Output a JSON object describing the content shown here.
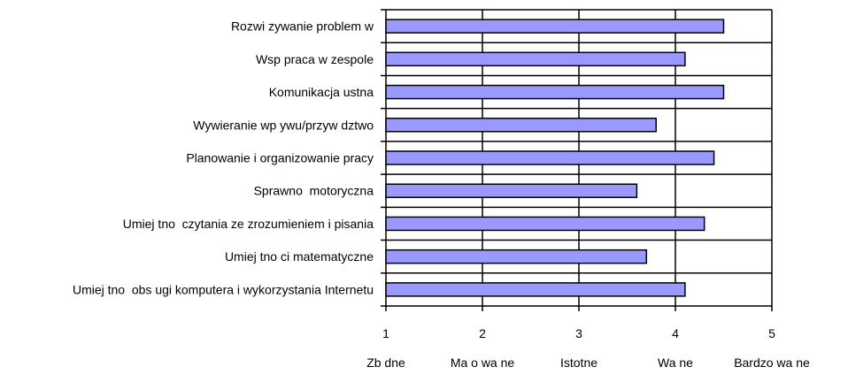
{
  "chart_data": {
    "type": "bar",
    "orientation": "horizontal",
    "categories": [
      "Rozwi zywanie problem w",
      "Wsp praca w zespole",
      "Komunikacja ustna",
      "Wywieranie wp ywu/przyw dztwo",
      "Planowanie i organizowanie pracy",
      "Sprawno  motoryczna",
      "Umiej tno  czytania ze zrozumieniem i pisania",
      "Umiej tno ci matematyczne",
      "Umiej tno  obs ugi komputera i wykorzystania Internetu"
    ],
    "values": [
      4.5,
      4.1,
      4.5,
      3.8,
      4.4,
      3.6,
      4.3,
      3.7,
      4.1
    ],
    "xlim": [
      1,
      5
    ],
    "xticks": [
      "1",
      "2",
      "3",
      "4",
      "5"
    ],
    "xtick_sublabels": [
      "Zb dne",
      "Ma o wa ne",
      "Istotne",
      "Wa ne",
      "Bardzo wa ne"
    ],
    "grid": true,
    "bar_color": "#9999ff",
    "edge_color": "#000000"
  }
}
